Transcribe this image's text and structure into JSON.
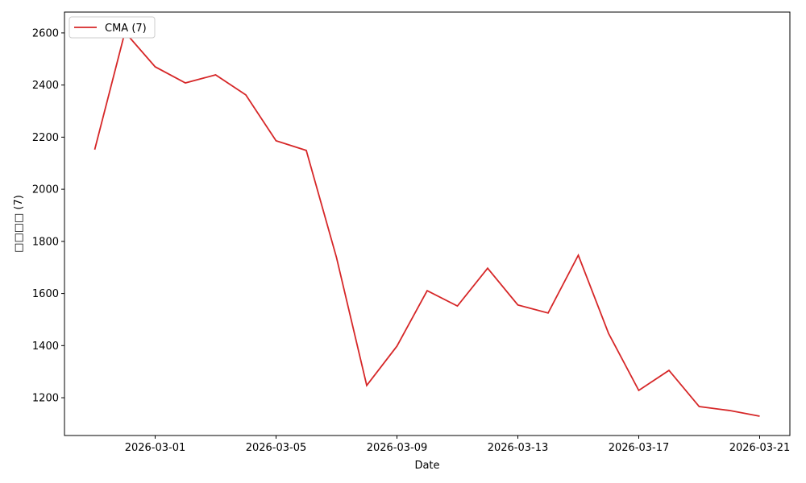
{
  "chart_data": {
    "type": "line",
    "x": [
      "2026-02-27",
      "2026-02-28",
      "2026-03-01",
      "2026-03-02",
      "2026-03-03",
      "2026-03-04",
      "2026-03-05",
      "2026-03-06",
      "2026-03-07",
      "2026-03-08",
      "2026-03-09",
      "2026-03-10",
      "2026-03-11",
      "2026-03-12",
      "2026-03-13",
      "2026-03-14",
      "2026-03-15",
      "2026-03-16",
      "2026-03-17",
      "2026-03-18",
      "2026-03-19",
      "2026-03-20",
      "2026-03-21"
    ],
    "series": [
      {
        "name": "CMA (7)",
        "color": "#d62728",
        "values": [
          2152,
          2603,
          2470,
          2408,
          2439,
          2362,
          2186,
          2149,
          1738,
          1247,
          1398,
          1611,
          1552,
          1697,
          1556,
          1525,
          1747,
          1447,
          1228,
          1305,
          1166,
          1151,
          1129
        ]
      }
    ],
    "xlabel": "Date",
    "ylabel": "□□□□ (7)",
    "xlim": [
      "2026-02-26",
      "2026-03-22"
    ],
    "xticks": [
      "2026-03-01",
      "2026-03-05",
      "2026-03-09",
      "2026-03-13",
      "2026-03-17",
      "2026-03-21"
    ],
    "ylim": [
      1055,
      2680
    ],
    "yticks": [
      1200,
      1400,
      1600,
      1800,
      2000,
      2200,
      2400,
      2600
    ],
    "legend": "upper left"
  }
}
